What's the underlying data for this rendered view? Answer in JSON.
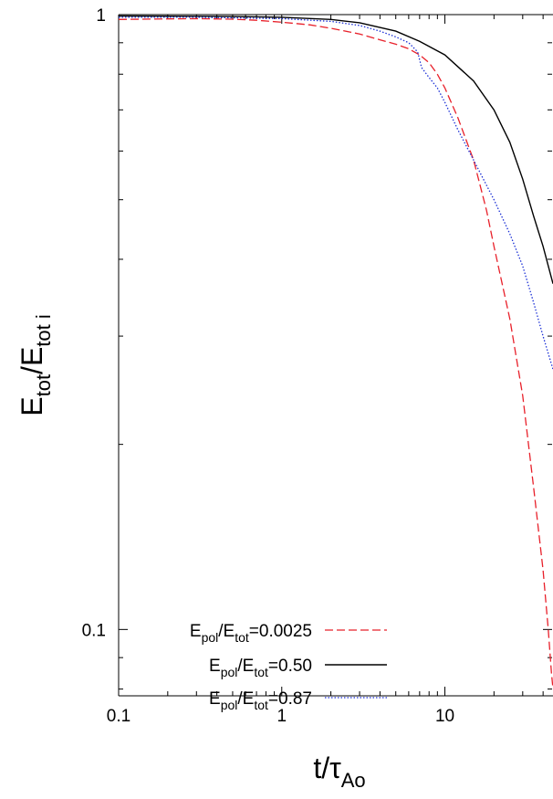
{
  "chart_data": {
    "type": "line",
    "xscale": "log",
    "yscale": "log",
    "xlim": [
      0.1,
      46
    ],
    "ylim": [
      0.078,
      1.0
    ],
    "grid": false,
    "legend_position": "bottom-left",
    "x_ticks": [
      {
        "value": 0.1,
        "label": "0.1"
      },
      {
        "value": 1,
        "label": "1"
      },
      {
        "value": 10,
        "label": "10"
      }
    ],
    "y_ticks": [
      {
        "value": 0.1,
        "label": "0.1"
      },
      {
        "value": 1,
        "label": "1"
      }
    ],
    "xlabel": {
      "main": "t/τ",
      "sub": "Ao"
    },
    "ylabel": {
      "p1": "E",
      "s1": "tot",
      "p2": "/E",
      "s2": "tot i"
    },
    "series": [
      {
        "label": {
          "a": "E",
          "a_sub": "pol",
          "b": "/E",
          "b_sub": "tot",
          "c": "=0.0025"
        },
        "color": "#e8202a",
        "style": "dashed",
        "points": [
          [
            0.1,
            0.982
          ],
          [
            0.2,
            0.984
          ],
          [
            0.3,
            0.985
          ],
          [
            0.5,
            0.983
          ],
          [
            0.7,
            0.979
          ],
          [
            1.0,
            0.972
          ],
          [
            1.5,
            0.962
          ],
          [
            2.0,
            0.95
          ],
          [
            3.0,
            0.93
          ],
          [
            4.0,
            0.91
          ],
          [
            5.0,
            0.895
          ],
          [
            6.0,
            0.88
          ],
          [
            7.0,
            0.86
          ],
          [
            8.0,
            0.835
          ],
          [
            9.0,
            0.8
          ],
          [
            10.0,
            0.76
          ],
          [
            12.0,
            0.68
          ],
          [
            15.0,
            0.58
          ],
          [
            18.0,
            0.48
          ],
          [
            20.0,
            0.42
          ],
          [
            25.0,
            0.32
          ],
          [
            30.0,
            0.24
          ],
          [
            35.0,
            0.17
          ],
          [
            40.0,
            0.125
          ],
          [
            43.0,
            0.1
          ],
          [
            45.0,
            0.085
          ],
          [
            46.0,
            0.08
          ]
        ]
      },
      {
        "label": {
          "a": "E",
          "a_sub": "pol",
          "b": "/E",
          "b_sub": "tot",
          "c": "=0.50"
        },
        "color": "#000000",
        "style": "solid",
        "points": [
          [
            0.1,
            0.995
          ],
          [
            0.3,
            0.994
          ],
          [
            0.5,
            0.993
          ],
          [
            1.0,
            0.99
          ],
          [
            2.0,
            0.982
          ],
          [
            3.0,
            0.97
          ],
          [
            5.0,
            0.94
          ],
          [
            7.0,
            0.905
          ],
          [
            10.0,
            0.86
          ],
          [
            15.0,
            0.78
          ],
          [
            20.0,
            0.7
          ],
          [
            25.0,
            0.62
          ],
          [
            30.0,
            0.54
          ],
          [
            35.0,
            0.47
          ],
          [
            40.0,
            0.42
          ],
          [
            46.0,
            0.365
          ]
        ]
      },
      {
        "label": {
          "a": "E",
          "a_sub": "pol",
          "b": "/E",
          "b_sub": "tot",
          "c": "=0.87"
        },
        "color": "#1a2fd6",
        "style": "dotted",
        "points": [
          [
            0.1,
            0.99
          ],
          [
            0.3,
            0.99
          ],
          [
            0.5,
            0.988
          ],
          [
            1.0,
            0.985
          ],
          [
            2.0,
            0.975
          ],
          [
            3.0,
            0.96
          ],
          [
            4.0,
            0.94
          ],
          [
            5.0,
            0.92
          ],
          [
            6.0,
            0.9
          ],
          [
            6.8,
            0.87
          ],
          [
            7.2,
            0.82
          ],
          [
            8.0,
            0.79
          ],
          [
            9.0,
            0.76
          ],
          [
            10.0,
            0.72
          ],
          [
            12.0,
            0.65
          ],
          [
            15.0,
            0.58
          ],
          [
            20.0,
            0.5
          ],
          [
            25.0,
            0.44
          ],
          [
            30.0,
            0.39
          ],
          [
            35.0,
            0.34
          ],
          [
            40.0,
            0.3
          ],
          [
            46.0,
            0.265
          ]
        ]
      }
    ]
  }
}
